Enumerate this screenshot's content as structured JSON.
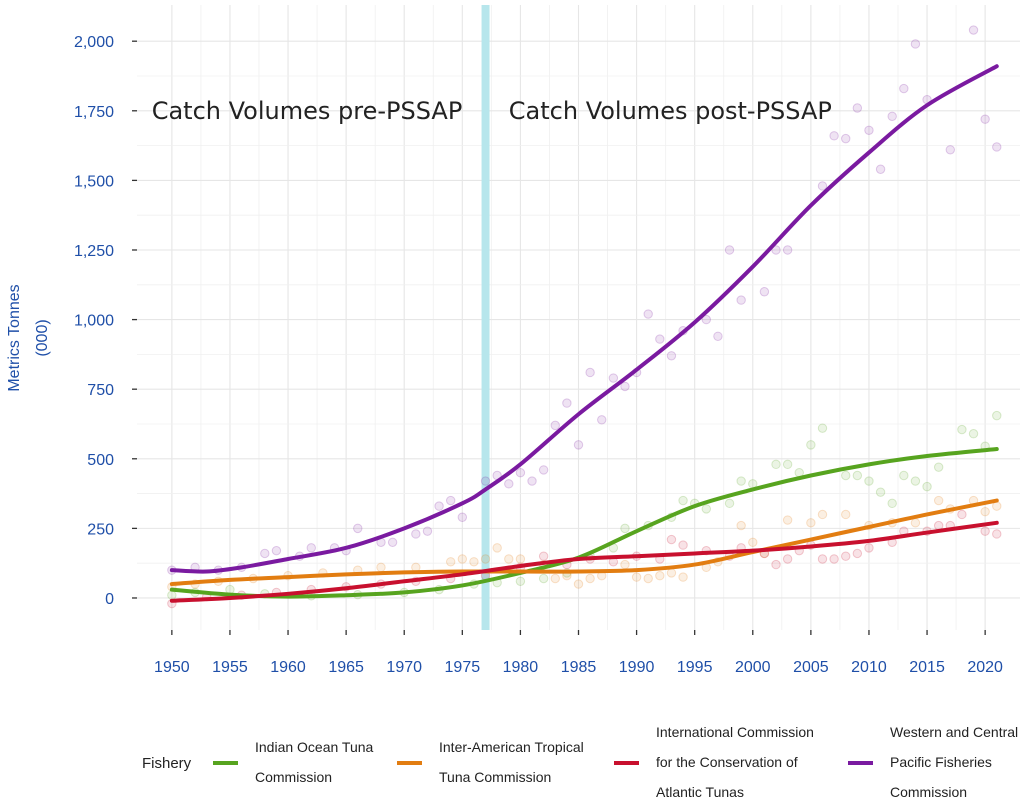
{
  "chart_data": {
    "type": "line",
    "title": "",
    "xlabel": "",
    "ylabel_lines": [
      "Metrics Tonnes",
      "(000)"
    ],
    "xlim": [
      1947,
      2023
    ],
    "ylim": [
      -115,
      2130
    ],
    "x_ticks": [
      1950,
      1955,
      1960,
      1965,
      1970,
      1975,
      1980,
      1985,
      1990,
      1995,
      2000,
      2005,
      2010,
      2015,
      2020
    ],
    "y_ticks": [
      0,
      250,
      500,
      750,
      1000,
      1250,
      1500,
      1750,
      2000
    ],
    "y_tick_labels": [
      "0",
      "250",
      "500",
      "750",
      "1,000",
      "1,250",
      "1,500",
      "1,750",
      "2,000"
    ],
    "grid": true,
    "legend_position": "bottom",
    "legend_title": "Fishery",
    "vertical_band": {
      "x": 1977,
      "color": "#b7e6ec"
    },
    "annotations": [
      {
        "text": "Catch Volumes pre-PSSAP",
        "x": 1975,
        "y": 1750,
        "anchor": "end"
      },
      {
        "text": "Catch Volumes post-PSSAP",
        "x": 1979,
        "y": 1750,
        "anchor": "start"
      }
    ],
    "series": [
      {
        "name_lines": [
          "Indian Ocean Tuna",
          "Commission"
        ],
        "color": "#57a41f",
        "trend": [
          [
            1950,
            30
          ],
          [
            1955,
            12
          ],
          [
            1960,
            5
          ],
          [
            1965,
            10
          ],
          [
            1970,
            20
          ],
          [
            1975,
            45
          ],
          [
            1980,
            90
          ],
          [
            1985,
            145
          ],
          [
            1990,
            240
          ],
          [
            1995,
            330
          ],
          [
            2000,
            390
          ],
          [
            2005,
            440
          ],
          [
            2010,
            480
          ],
          [
            2015,
            510
          ],
          [
            2021,
            535
          ]
        ],
        "points": [
          [
            1950,
            10
          ],
          [
            1952,
            20
          ],
          [
            1955,
            30
          ],
          [
            1958,
            15
          ],
          [
            1962,
            8
          ],
          [
            1966,
            12
          ],
          [
            1970,
            20
          ],
          [
            1973,
            30
          ],
          [
            1976,
            50
          ],
          [
            1978,
            55
          ],
          [
            1980,
            60
          ],
          [
            1982,
            70
          ],
          [
            1984,
            90
          ],
          [
            1986,
            150
          ],
          [
            1988,
            180
          ],
          [
            1989,
            250
          ],
          [
            1991,
            260
          ],
          [
            1993,
            290
          ],
          [
            1994,
            350
          ],
          [
            1995,
            340
          ],
          [
            1996,
            320
          ],
          [
            1998,
            340
          ],
          [
            1999,
            420
          ],
          [
            2000,
            410
          ],
          [
            2002,
            480
          ],
          [
            2003,
            480
          ],
          [
            2004,
            450
          ],
          [
            2005,
            550
          ],
          [
            2006,
            610
          ],
          [
            2008,
            440
          ],
          [
            2009,
            440
          ],
          [
            2010,
            420
          ],
          [
            2011,
            380
          ],
          [
            2012,
            340
          ],
          [
            2013,
            440
          ],
          [
            2014,
            420
          ],
          [
            2015,
            400
          ],
          [
            2016,
            470
          ],
          [
            2018,
            605
          ],
          [
            2019,
            590
          ],
          [
            2020,
            545
          ],
          [
            2021,
            655
          ]
        ]
      },
      {
        "name_lines": [
          "Inter-American Tropical",
          "Tuna Commission"
        ],
        "color": "#e27d11",
        "trend": [
          [
            1950,
            50
          ],
          [
            1955,
            65
          ],
          [
            1960,
            75
          ],
          [
            1965,
            85
          ],
          [
            1970,
            92
          ],
          [
            1975,
            95
          ],
          [
            1980,
            95
          ],
          [
            1985,
            95
          ],
          [
            1990,
            100
          ],
          [
            1995,
            120
          ],
          [
            2000,
            165
          ],
          [
            2005,
            210
          ],
          [
            2010,
            255
          ],
          [
            2015,
            300
          ],
          [
            2021,
            350
          ]
        ],
        "points": [
          [
            1950,
            40
          ],
          [
            1952,
            50
          ],
          [
            1954,
            60
          ],
          [
            1957,
            70
          ],
          [
            1960,
            80
          ],
          [
            1963,
            90
          ],
          [
            1966,
            100
          ],
          [
            1968,
            110
          ],
          [
            1971,
            110
          ],
          [
            1974,
            130
          ],
          [
            1975,
            140
          ],
          [
            1976,
            130
          ],
          [
            1977,
            140
          ],
          [
            1978,
            180
          ],
          [
            1979,
            140
          ],
          [
            1980,
            140
          ],
          [
            1982,
            120
          ],
          [
            1983,
            70
          ],
          [
            1984,
            80
          ],
          [
            1985,
            50
          ],
          [
            1986,
            70
          ],
          [
            1987,
            80
          ],
          [
            1989,
            120
          ],
          [
            1990,
            75
          ],
          [
            1991,
            70
          ],
          [
            1992,
            80
          ],
          [
            1993,
            90
          ],
          [
            1994,
            75
          ],
          [
            1996,
            110
          ],
          [
            1997,
            130
          ],
          [
            1999,
            260
          ],
          [
            2000,
            200
          ],
          [
            2001,
            160
          ],
          [
            2003,
            280
          ],
          [
            2005,
            270
          ],
          [
            2006,
            300
          ],
          [
            2008,
            300
          ],
          [
            2010,
            260
          ],
          [
            2012,
            270
          ],
          [
            2014,
            270
          ],
          [
            2016,
            350
          ],
          [
            2017,
            320
          ],
          [
            2019,
            350
          ],
          [
            2020,
            310
          ],
          [
            2021,
            330
          ]
        ]
      },
      {
        "name_lines": [
          "International Commission",
          "for the Conservation of",
          "Atlantic Tunas"
        ],
        "color": "#c8102e",
        "trend": [
          [
            1950,
            -10
          ],
          [
            1955,
            0
          ],
          [
            1960,
            15
          ],
          [
            1965,
            35
          ],
          [
            1970,
            60
          ],
          [
            1975,
            85
          ],
          [
            1980,
            115
          ],
          [
            1985,
            140
          ],
          [
            1990,
            150
          ],
          [
            1995,
            160
          ],
          [
            2000,
            170
          ],
          [
            2005,
            185
          ],
          [
            2010,
            205
          ],
          [
            2015,
            235
          ],
          [
            2021,
            270
          ]
        ],
        "points": [
          [
            1950,
            -20
          ],
          [
            1953,
            5
          ],
          [
            1956,
            10
          ],
          [
            1959,
            20
          ],
          [
            1962,
            30
          ],
          [
            1965,
            40
          ],
          [
            1968,
            50
          ],
          [
            1971,
            60
          ],
          [
            1974,
            70
          ],
          [
            1977,
            80
          ],
          [
            1980,
            110
          ],
          [
            1982,
            150
          ],
          [
            1984,
            120
          ],
          [
            1986,
            140
          ],
          [
            1988,
            130
          ],
          [
            1990,
            150
          ],
          [
            1992,
            140
          ],
          [
            1993,
            210
          ],
          [
            1994,
            190
          ],
          [
            1996,
            170
          ],
          [
            1998,
            150
          ],
          [
            1999,
            180
          ],
          [
            2001,
            160
          ],
          [
            2002,
            120
          ],
          [
            2003,
            140
          ],
          [
            2004,
            170
          ],
          [
            2005,
            190
          ],
          [
            2006,
            140
          ],
          [
            2007,
            140
          ],
          [
            2008,
            150
          ],
          [
            2009,
            160
          ],
          [
            2010,
            180
          ],
          [
            2012,
            200
          ],
          [
            2013,
            240
          ],
          [
            2015,
            240
          ],
          [
            2016,
            260
          ],
          [
            2017,
            260
          ],
          [
            2018,
            300
          ],
          [
            2020,
            240
          ],
          [
            2021,
            230
          ]
        ]
      },
      {
        "name_lines": [
          "Western and Central",
          "Pacific Fisheries",
          "Commission"
        ],
        "color": "#7a1aa0",
        "trend": [
          [
            1950,
            100
          ],
          [
            1953,
            95
          ],
          [
            1956,
            110
          ],
          [
            1960,
            140
          ],
          [
            1965,
            180
          ],
          [
            1970,
            250
          ],
          [
            1975,
            340
          ],
          [
            1977,
            390
          ],
          [
            1980,
            480
          ],
          [
            1985,
            660
          ],
          [
            1990,
            820
          ],
          [
            1995,
            990
          ],
          [
            2000,
            1190
          ],
          [
            2005,
            1410
          ],
          [
            2010,
            1600
          ],
          [
            2015,
            1770
          ],
          [
            2021,
            1910
          ]
        ],
        "points": [
          [
            1950,
            100
          ],
          [
            1952,
            110
          ],
          [
            1954,
            100
          ],
          [
            1956,
            110
          ],
          [
            1958,
            160
          ],
          [
            1959,
            170
          ],
          [
            1961,
            150
          ],
          [
            1962,
            180
          ],
          [
            1964,
            180
          ],
          [
            1965,
            170
          ],
          [
            1966,
            250
          ],
          [
            1968,
            200
          ],
          [
            1969,
            200
          ],
          [
            1971,
            230
          ],
          [
            1972,
            240
          ],
          [
            1973,
            330
          ],
          [
            1974,
            350
          ],
          [
            1975,
            290
          ],
          [
            1977,
            420
          ],
          [
            1978,
            440
          ],
          [
            1979,
            410
          ],
          [
            1980,
            450
          ],
          [
            1981,
            420
          ],
          [
            1982,
            460
          ],
          [
            1983,
            620
          ],
          [
            1984,
            700
          ],
          [
            1985,
            550
          ],
          [
            1986,
            810
          ],
          [
            1987,
            640
          ],
          [
            1988,
            790
          ],
          [
            1989,
            760
          ],
          [
            1990,
            810
          ],
          [
            1991,
            1020
          ],
          [
            1992,
            930
          ],
          [
            1993,
            870
          ],
          [
            1994,
            960
          ],
          [
            1996,
            1000
          ],
          [
            1997,
            940
          ],
          [
            1998,
            1250
          ],
          [
            1999,
            1070
          ],
          [
            2001,
            1100
          ],
          [
            2002,
            1250
          ],
          [
            2003,
            1250
          ],
          [
            2006,
            1480
          ],
          [
            2007,
            1660
          ],
          [
            2008,
            1650
          ],
          [
            2009,
            1760
          ],
          [
            2010,
            1680
          ],
          [
            2011,
            1540
          ],
          [
            2012,
            1730
          ],
          [
            2013,
            1830
          ],
          [
            2014,
            1990
          ],
          [
            2015,
            1790
          ],
          [
            2017,
            1610
          ],
          [
            2019,
            2040
          ],
          [
            2020,
            1720
          ],
          [
            2021,
            1620
          ]
        ]
      }
    ]
  }
}
